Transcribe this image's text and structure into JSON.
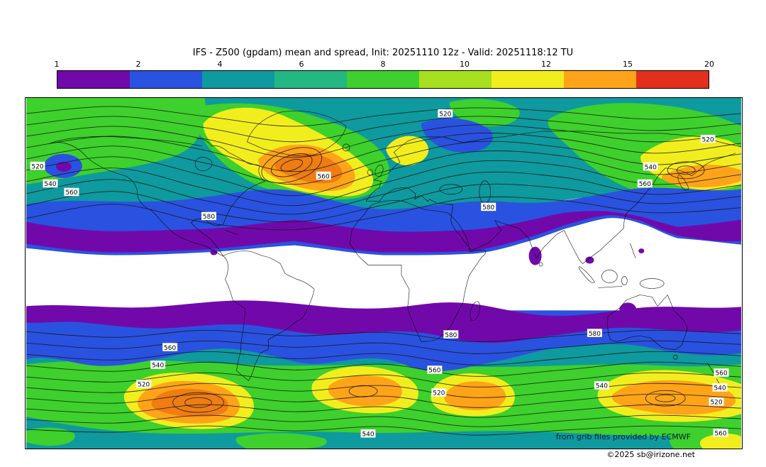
{
  "title": "IFS - Z500 (gpdam) mean and spread, Init: 20251110 12z - Valid: 20251118:12 TU",
  "colorbar": {
    "tick_labels": [
      "1",
      "2",
      "4",
      "6",
      "8",
      "10",
      "12",
      "15",
      "20"
    ],
    "colors": [
      "#7109aa",
      "#2a52e0",
      "#0e9a9e",
      "#24b783",
      "#3ed02c",
      "#a6e01f",
      "#f2ee1d",
      "#ffa418",
      "#e42f1e"
    ]
  },
  "map": {
    "isoline_values": {
      "v520": "520",
      "v540": "540",
      "v560": "560",
      "v580": "580"
    }
  },
  "attribution": {
    "line1": "from grib files provided by ECMWF",
    "line2": "©2025 sb@irizone.net"
  },
  "chart_data": {
    "type": "heatmap",
    "title": "IFS - Z500 (gpdam) mean and spread, Init: 20251110 12z - Valid: 20251118:12 TU",
    "model": "IFS",
    "variable": "Z500 (gpdam)",
    "init": "20251110 12z",
    "valid": "20251118:12 TU",
    "shaded_field": "Z500 ensemble spread (gpdam)",
    "contour_field": "Z500 ensemble mean (gpdam)",
    "colorbar_levels": [
      1,
      2,
      4,
      6,
      8,
      10,
      12,
      15,
      20
    ],
    "colorbar_colors": [
      "#7109aa",
      "#2a52e0",
      "#0e9a9e",
      "#24b783",
      "#3ed02c",
      "#a6e01f",
      "#f2ee1d",
      "#ffa418",
      "#e42f1e"
    ],
    "contour_line_values_gpdam": [
      520,
      540,
      560,
      580
    ],
    "region": "global (90N-90S, 180W-180E)",
    "legend_position": "top",
    "pattern": "low spread (white/purple) in tropics; high spread (green/yellow/orange) along mid-latitude storm tracks of both hemispheres",
    "annotations": [
      "from grib files provided by ECMWF",
      "©2025 sb@irizone.net"
    ]
  }
}
